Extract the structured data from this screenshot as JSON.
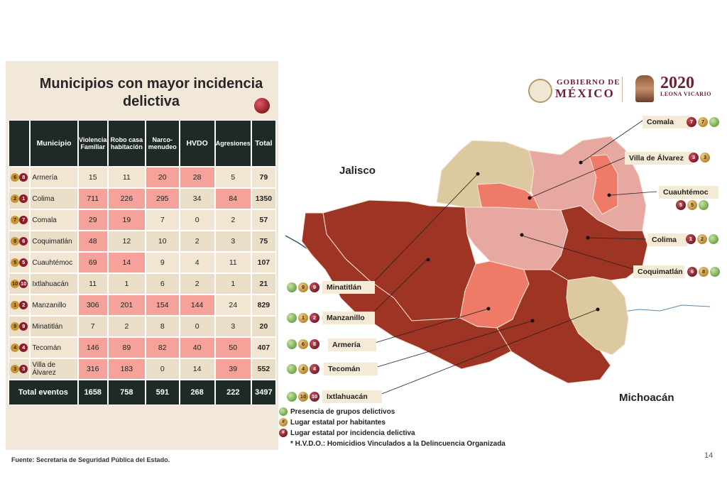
{
  "title": "Municipios con mayor incidencia delictiva",
  "table": {
    "headers": [
      "Municipio",
      "Violencia Familiar",
      "Robo casa habitación",
      "Narco-menudeo",
      "HVDO",
      "Agresiones",
      "Total"
    ],
    "rows": [
      {
        "hab": "6",
        "inc": "8",
        "municipio": "Armería",
        "vf": "15",
        "rc": "11",
        "nm": "20",
        "hvdo": "28",
        "ag": "5",
        "total": "79"
      },
      {
        "hab": "2",
        "inc": "1",
        "municipio": "Colima",
        "vf": "711",
        "rc": "226",
        "nm": "295",
        "hvdo": "34",
        "ag": "84",
        "total": "1350"
      },
      {
        "hab": "7",
        "inc": "7",
        "municipio": "Comala",
        "vf": "29",
        "rc": "19",
        "nm": "7",
        "hvdo": "0",
        "ag": "2",
        "total": "57"
      },
      {
        "hab": "8",
        "inc": "6",
        "municipio": "Coquimatlán",
        "vf": "48",
        "rc": "12",
        "nm": "10",
        "hvdo": "2",
        "ag": "3",
        "total": "75"
      },
      {
        "hab": "5",
        "inc": "5",
        "municipio": "Cuauhtémoc",
        "vf": "69",
        "rc": "14",
        "nm": "9",
        "hvdo": "4",
        "ag": "11",
        "total": "107"
      },
      {
        "hab": "10",
        "inc": "10",
        "municipio": "Ixtlahuacán",
        "vf": "11",
        "rc": "1",
        "nm": "6",
        "hvdo": "2",
        "ag": "1",
        "total": "21"
      },
      {
        "hab": "1",
        "inc": "2",
        "municipio": "Manzanillo",
        "vf": "306",
        "rc": "201",
        "nm": "154",
        "hvdo": "144",
        "ag": "24",
        "total": "829"
      },
      {
        "hab": "9",
        "inc": "9",
        "municipio": "Minatitlán",
        "vf": "7",
        "rc": "2",
        "nm": "8",
        "hvdo": "0",
        "ag": "3",
        "total": "20"
      },
      {
        "hab": "4",
        "inc": "4",
        "municipio": "Tecomán",
        "vf": "146",
        "rc": "89",
        "nm": "82",
        "hvdo": "40",
        "ag": "50",
        "total": "407"
      },
      {
        "hab": "3",
        "inc": "3",
        "municipio": "Villa de Álvarez",
        "vf": "316",
        "rc": "183",
        "nm": "0",
        "hvdo": "14",
        "ag": "39",
        "total": "552"
      }
    ],
    "footer": {
      "label": "Total eventos",
      "vf": "1658",
      "rc": "758",
      "nm": "591",
      "hvdo": "268",
      "ag": "222",
      "total": "3497"
    }
  },
  "source": "Fuente: Secretaría de Seguridad Pública del Estado.",
  "page_number": "14",
  "logo": {
    "line1": "GOBIERNO DE",
    "line2": "MÉXICO",
    "year": "2020",
    "name": "LEONA VICARIO"
  },
  "map": {
    "neighbors": {
      "north": "Jalisco",
      "south": "Michoacán"
    },
    "tags": [
      {
        "name": "Comala",
        "b1": "7",
        "b2": "7"
      },
      {
        "name": "Villa de Álvarez",
        "b1": "3",
        "b2": "3"
      },
      {
        "name": "Cuauhtémoc",
        "b1": "5",
        "b2": "5"
      },
      {
        "name": "Colima",
        "b1": "1",
        "b2": "2"
      },
      {
        "name": "Coquimatlán",
        "b1": "6",
        "b2": "8"
      },
      {
        "name": "Minatitlán",
        "b1": "9",
        "b2": "9"
      },
      {
        "name": "Manzanillo",
        "b1": "1",
        "b2": "2"
      },
      {
        "name": "Armería",
        "b1": "6",
        "b2": "8"
      },
      {
        "name": "Tecomán",
        "b1": "4",
        "b2": "4"
      },
      {
        "name": "Ixtlahuacán",
        "b1": "10",
        "b2": "10"
      }
    ]
  },
  "legend": {
    "groups": "Presencia de grupos delictivos",
    "hab_symbol": "#",
    "hab": "Lugar estatal por habitantes",
    "inc_symbol": "#",
    "inc": "Lugar estatal por incidencia delictiva",
    "hvdo": "* H.V.D.O.: Homicidios Vinculados a la Delincuencia Organizada"
  },
  "colors": {
    "dark_red": "#9e3424",
    "salmon": "#f07a68",
    "light_pink": "#e8a8a2",
    "beige": "#dcc9a0",
    "header_dark": "#1f2a26"
  }
}
